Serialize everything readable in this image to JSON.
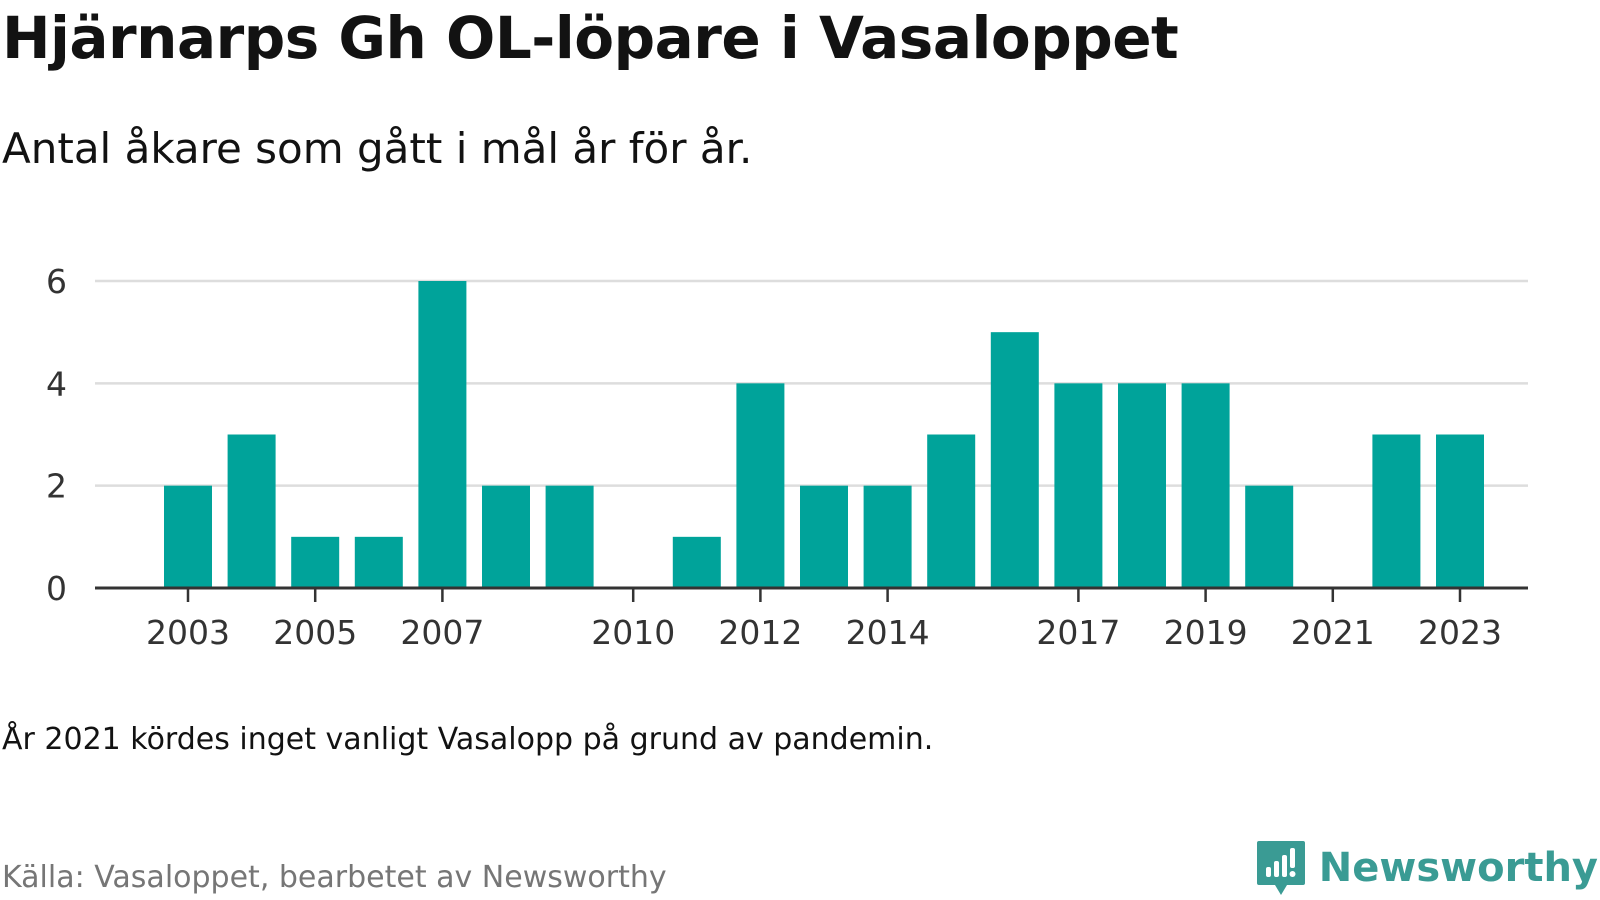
{
  "title": "Hjärnarps Gh OL-löpare i Vasaloppet",
  "subtitle": "Antal åkare som gått i mål år för år.",
  "note": "År 2021 kördes inget vanligt Vasalopp på grund av pandemin.",
  "source": "Källa: Vasaloppet, bearbetet av Newsworthy",
  "brand": {
    "name": "Newsworthy",
    "icon": "bar-chart-speech-bubble-icon",
    "color": "#3a9b94"
  },
  "chart_data": {
    "type": "bar",
    "categories": [
      "2003",
      "2004",
      "2005",
      "2006",
      "2007",
      "2008",
      "2009",
      "2010",
      "2011",
      "2012",
      "2013",
      "2014",
      "2015",
      "2016",
      "2017",
      "2018",
      "2019",
      "2020",
      "2021",
      "2022",
      "2023"
    ],
    "values": [
      2,
      3,
      1,
      1,
      6,
      2,
      2,
      0,
      1,
      4,
      2,
      2,
      3,
      5,
      4,
      4,
      4,
      2,
      0,
      3,
      3
    ],
    "x_tick_labels": [
      "2003",
      "2005",
      "2007",
      "2010",
      "2012",
      "2014",
      "2017",
      "2019",
      "2021",
      "2023"
    ],
    "y_ticks": [
      0,
      2,
      4,
      6
    ],
    "ylim": [
      0,
      6
    ],
    "grid": true,
    "bar_color": "#00a39a",
    "grid_color": "#dddddd",
    "axis_color": "#333333"
  }
}
